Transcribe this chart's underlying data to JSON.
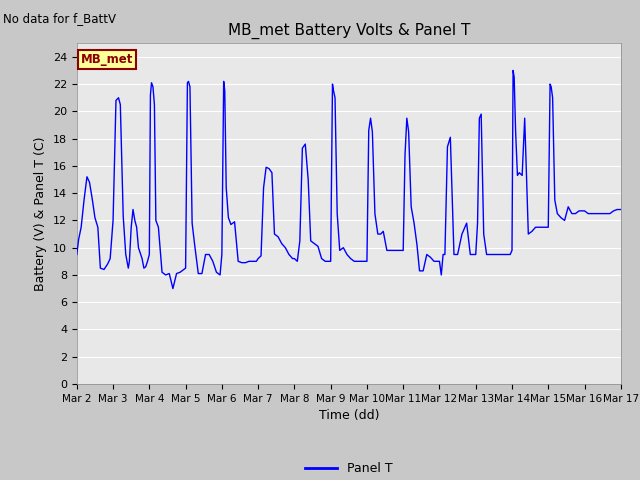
{
  "title": "MB_met Battery Volts & Panel T",
  "top_left_text": "No data for f_BattV",
  "ylabel": "Battery (V) & Panel T (C)",
  "xlabel": "Time (dd)",
  "ylim": [
    0,
    25
  ],
  "yticks": [
    0,
    2,
    4,
    6,
    8,
    10,
    12,
    14,
    16,
    18,
    20,
    22,
    24
  ],
  "xtick_labels": [
    "Mar 2",
    "Mar 3",
    "Mar 4",
    "Mar 5",
    "Mar 6",
    "Mar 7",
    "Mar 8",
    "Mar 9",
    "Mar 10",
    "Mar 11",
    "Mar 12",
    "Mar 13",
    "Mar 14",
    "Mar 15",
    "Mar 16",
    "Mar 17"
  ],
  "legend_label": "Panel T",
  "legend_color": "#0000ff",
  "line_color": "#0000ff",
  "label_box_color": "#ffff99",
  "label_box_edge": "#8b0000",
  "label_text": "MB_met",
  "label_text_color": "#8b0000",
  "xmin": 0,
  "xmax": 15,
  "panel_t_x": [
    0.0,
    0.05,
    0.12,
    0.2,
    0.28,
    0.35,
    0.43,
    0.5,
    0.58,
    0.65,
    0.75,
    0.85,
    0.92,
    1.0,
    1.08,
    1.15,
    1.2,
    1.28,
    1.35,
    1.42,
    1.45,
    1.5,
    1.55,
    1.6,
    1.65,
    1.7,
    1.75,
    1.8,
    1.85,
    1.9,
    1.95,
    2.0,
    2.03,
    2.06,
    2.1,
    2.14,
    2.18,
    2.25,
    2.35,
    2.45,
    2.55,
    2.65,
    2.75,
    2.85,
    2.95,
    3.0,
    3.05,
    3.08,
    3.12,
    3.18,
    3.25,
    3.35,
    3.45,
    3.55,
    3.65,
    3.75,
    3.85,
    3.95,
    4.0,
    4.05,
    4.08,
    4.12,
    4.18,
    4.25,
    4.35,
    4.45,
    4.55,
    4.65,
    4.75,
    4.85,
    4.95,
    5.0,
    5.08,
    5.15,
    5.22,
    5.3,
    5.38,
    5.45,
    5.55,
    5.65,
    5.75,
    5.85,
    5.95,
    6.0,
    6.08,
    6.15,
    6.22,
    6.3,
    6.38,
    6.45,
    6.55,
    6.65,
    6.75,
    6.85,
    6.95,
    7.0,
    7.05,
    7.08,
    7.12,
    7.18,
    7.25,
    7.35,
    7.45,
    7.55,
    7.65,
    7.75,
    7.85,
    7.95,
    8.0,
    8.05,
    8.1,
    8.15,
    8.22,
    8.3,
    8.38,
    8.45,
    8.55,
    8.65,
    8.75,
    8.85,
    8.95,
    9.0,
    9.05,
    9.1,
    9.15,
    9.22,
    9.3,
    9.38,
    9.45,
    9.55,
    9.65,
    9.75,
    9.85,
    9.95,
    10.0,
    10.05,
    10.1,
    10.15,
    10.22,
    10.3,
    10.4,
    10.5,
    10.62,
    10.75,
    10.85,
    10.95,
    11.0,
    11.05,
    11.1,
    11.15,
    11.22,
    11.3,
    11.4,
    11.5,
    11.65,
    11.75,
    11.85,
    11.95,
    12.0,
    12.03,
    12.06,
    12.1,
    12.15,
    12.2,
    12.28,
    12.35,
    12.45,
    12.55,
    12.65,
    12.75,
    12.85,
    12.95,
    13.0,
    13.05,
    13.08,
    13.12,
    13.18,
    13.25,
    13.35,
    13.45,
    13.55,
    13.65,
    13.75,
    13.85,
    13.95,
    14.0,
    14.1,
    14.2,
    14.3,
    14.4,
    14.5,
    14.6,
    14.7,
    14.8,
    14.9,
    15.0
  ],
  "panel_t_y": [
    9.5,
    10.6,
    11.5,
    13.5,
    15.2,
    14.8,
    13.5,
    12.2,
    11.5,
    8.5,
    8.4,
    8.8,
    9.2,
    12.0,
    20.8,
    21.0,
    20.5,
    12.3,
    9.5,
    8.5,
    9.0,
    11.5,
    12.8,
    12.0,
    11.5,
    10.0,
    9.6,
    9.2,
    8.5,
    8.6,
    9.0,
    9.5,
    21.2,
    22.1,
    21.8,
    20.5,
    12.0,
    11.5,
    8.2,
    8.0,
    8.1,
    7.0,
    8.1,
    8.2,
    8.4,
    8.5,
    22.1,
    22.2,
    21.8,
    11.8,
    10.2,
    8.1,
    8.1,
    9.5,
    9.5,
    9.0,
    8.2,
    8.0,
    9.5,
    22.2,
    21.5,
    14.4,
    12.2,
    11.7,
    11.9,
    9.0,
    8.9,
    8.9,
    9.0,
    9.0,
    9.0,
    9.2,
    9.4,
    14.4,
    15.9,
    15.8,
    15.5,
    11.0,
    10.8,
    10.3,
    10.0,
    9.5,
    9.2,
    9.2,
    9.0,
    10.5,
    17.3,
    17.6,
    15.0,
    10.5,
    10.3,
    10.1,
    9.2,
    9.0,
    9.0,
    9.0,
    22.0,
    21.5,
    21.0,
    12.5,
    9.8,
    10.0,
    9.5,
    9.2,
    9.0,
    9.0,
    9.0,
    9.0,
    9.0,
    18.6,
    19.5,
    18.5,
    12.5,
    11.0,
    11.0,
    11.2,
    9.8,
    9.8,
    9.8,
    9.8,
    9.8,
    9.8,
    16.8,
    19.5,
    18.5,
    13.0,
    11.8,
    10.2,
    8.3,
    8.3,
    9.5,
    9.3,
    9.0,
    9.0,
    9.0,
    8.0,
    9.5,
    9.5,
    17.4,
    18.1,
    9.5,
    9.5,
    11.0,
    11.8,
    9.5,
    9.5,
    9.5,
    11.8,
    19.5,
    19.8,
    11.0,
    9.5,
    9.5,
    9.5,
    9.5,
    9.5,
    9.5,
    9.5,
    9.8,
    23.0,
    22.5,
    18.5,
    15.3,
    15.5,
    15.3,
    19.5,
    11.0,
    11.2,
    11.5,
    11.5,
    11.5,
    11.5,
    11.5,
    22.0,
    21.8,
    21.0,
    13.5,
    12.5,
    12.2,
    12.0,
    13.0,
    12.5,
    12.5,
    12.7,
    12.7,
    12.7,
    12.5,
    12.5,
    12.5,
    12.5,
    12.5,
    12.5,
    12.5,
    12.7,
    12.8,
    12.8
  ],
  "fig_width": 6.4,
  "fig_height": 4.8,
  "dpi": 100
}
